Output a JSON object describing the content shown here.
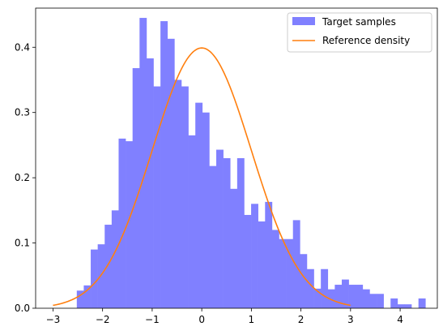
{
  "chart_data": {
    "type": "bar",
    "title": "",
    "xlabel": "",
    "ylabel": "",
    "xlim": [
      -3.35,
      4.75
    ],
    "ylim": [
      0,
      0.46
    ],
    "grid": false,
    "legend_position": "top-right",
    "x_ticks": [
      -3,
      -2,
      -1,
      0,
      1,
      2,
      3,
      4
    ],
    "y_ticks": [
      0.0,
      0.1,
      0.2,
      0.3,
      0.4
    ],
    "y_tick_labels": [
      "0.0",
      "0.1",
      "0.2",
      "0.3",
      "0.4"
    ],
    "histogram": {
      "name": "Target samples",
      "color": "#8080ff",
      "bin_start": -2.52,
      "bin_width": 0.1406,
      "densities": [
        0.027,
        0.035,
        0.09,
        0.098,
        0.128,
        0.15,
        0.26,
        0.256,
        0.368,
        0.445,
        0.383,
        0.34,
        0.44,
        0.413,
        0.35,
        0.34,
        0.265,
        0.315,
        0.3,
        0.218,
        0.243,
        0.23,
        0.183,
        0.23,
        0.143,
        0.16,
        0.133,
        0.163,
        0.12,
        0.106,
        0.106,
        0.135,
        0.083,
        0.06,
        0.03,
        0.06,
        0.029,
        0.036,
        0.044,
        0.036,
        0.036,
        0.029,
        0.022,
        0.022,
        0,
        0.015,
        0.006,
        0.006,
        0,
        0.015,
        0,
        0,
        0,
        0,
        0,
        0,
        0,
        0.015
      ]
    },
    "series": [
      {
        "name": "Reference density",
        "color": "#ff7f0e",
        "function": "standard_normal_pdf",
        "x_range": [
          -3,
          3
        ]
      }
    ]
  }
}
